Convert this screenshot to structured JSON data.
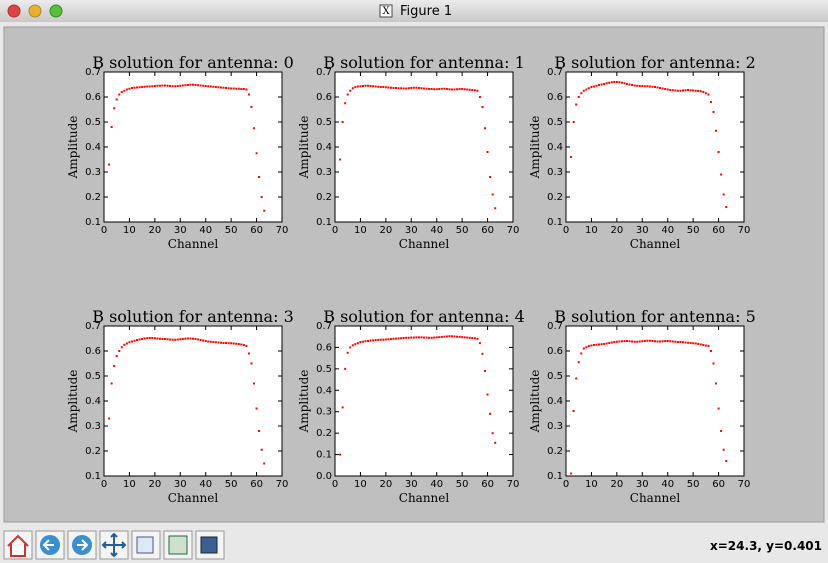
{
  "window": {
    "title": "Figure 1",
    "status": "x=24.3, y=0.401"
  },
  "chart_data": [
    {
      "type": "scatter",
      "title": "B solution for antenna: 0",
      "xlabel": "Channel",
      "ylabel": "Amplitude",
      "color": "#ff0000",
      "xlim": [
        0,
        70
      ],
      "ylim": [
        0.1,
        0.7
      ],
      "xticks": [
        0,
        10,
        20,
        30,
        40,
        50,
        60,
        70
      ],
      "yticks": [
        0.1,
        0.2,
        0.3,
        0.4,
        0.5,
        0.6,
        0.7
      ],
      "x": [
        2,
        3,
        4,
        5,
        6,
        7,
        8,
        9,
        10,
        11,
        12,
        13,
        14,
        15,
        16,
        17,
        18,
        19,
        20,
        21,
        22,
        23,
        24,
        25,
        26,
        27,
        28,
        29,
        30,
        31,
        32,
        33,
        34,
        35,
        36,
        37,
        38,
        39,
        40,
        41,
        42,
        43,
        44,
        45,
        46,
        47,
        48,
        49,
        50,
        51,
        52,
        53,
        54,
        55,
        56,
        57,
        58,
        59,
        60,
        61,
        62,
        63
      ],
      "values": [
        0.33,
        0.48,
        0.555,
        0.59,
        0.61,
        0.62,
        0.625,
        0.63,
        0.633,
        0.636,
        0.637,
        0.638,
        0.639,
        0.64,
        0.641,
        0.642,
        0.642,
        0.643,
        0.644,
        0.645,
        0.645,
        0.646,
        0.646,
        0.645,
        0.644,
        0.643,
        0.643,
        0.644,
        0.645,
        0.646,
        0.647,
        0.648,
        0.649,
        0.649,
        0.648,
        0.647,
        0.646,
        0.645,
        0.644,
        0.643,
        0.642,
        0.641,
        0.64,
        0.639,
        0.638,
        0.637,
        0.636,
        0.635,
        0.634,
        0.634,
        0.633,
        0.633,
        0.632,
        0.632,
        0.63,
        0.61,
        0.56,
        0.475,
        0.375,
        0.28,
        0.2,
        0.145
      ]
    },
    {
      "type": "scatter",
      "title": "B solution for antenna: 1",
      "xlabel": "Channel",
      "ylabel": "Amplitude",
      "color": "#ff0000",
      "xlim": [
        0,
        70
      ],
      "ylim": [
        0.1,
        0.7
      ],
      "xticks": [
        0,
        10,
        20,
        30,
        40,
        50,
        60,
        70
      ],
      "yticks": [
        0.1,
        0.2,
        0.3,
        0.4,
        0.5,
        0.6,
        0.7
      ],
      "x": [
        2,
        3,
        4,
        5,
        6,
        7,
        8,
        9,
        10,
        11,
        12,
        13,
        14,
        15,
        16,
        17,
        18,
        19,
        20,
        21,
        22,
        23,
        24,
        25,
        26,
        27,
        28,
        29,
        30,
        31,
        32,
        33,
        34,
        35,
        36,
        37,
        38,
        39,
        40,
        41,
        42,
        43,
        44,
        45,
        46,
        47,
        48,
        49,
        50,
        51,
        52,
        53,
        54,
        55,
        56,
        57,
        58,
        59,
        60,
        61,
        62,
        63
      ],
      "values": [
        0.35,
        0.5,
        0.575,
        0.61,
        0.625,
        0.635,
        0.64,
        0.642,
        0.643,
        0.644,
        0.645,
        0.645,
        0.644,
        0.643,
        0.642,
        0.641,
        0.64,
        0.64,
        0.639,
        0.638,
        0.637,
        0.636,
        0.636,
        0.635,
        0.635,
        0.634,
        0.634,
        0.635,
        0.636,
        0.637,
        0.637,
        0.636,
        0.635,
        0.634,
        0.633,
        0.632,
        0.632,
        0.631,
        0.631,
        0.632,
        0.633,
        0.633,
        0.632,
        0.631,
        0.63,
        0.63,
        0.631,
        0.632,
        0.632,
        0.631,
        0.63,
        0.629,
        0.628,
        0.627,
        0.625,
        0.6,
        0.56,
        0.475,
        0.38,
        0.28,
        0.21,
        0.155
      ]
    },
    {
      "type": "scatter",
      "title": "B solution for antenna: 2",
      "xlabel": "Channel",
      "ylabel": "Amplitude",
      "color": "#ff0000",
      "xlim": [
        0,
        70
      ],
      "ylim": [
        0.1,
        0.7
      ],
      "xticks": [
        0,
        10,
        20,
        30,
        40,
        50,
        60,
        70
      ],
      "yticks": [
        0.1,
        0.2,
        0.3,
        0.4,
        0.5,
        0.6,
        0.7
      ],
      "x": [
        2,
        3,
        4,
        5,
        6,
        7,
        8,
        9,
        10,
        11,
        12,
        13,
        14,
        15,
        16,
        17,
        18,
        19,
        20,
        21,
        22,
        23,
        24,
        25,
        26,
        27,
        28,
        29,
        30,
        31,
        32,
        33,
        34,
        35,
        36,
        37,
        38,
        39,
        40,
        41,
        42,
        43,
        44,
        45,
        46,
        47,
        48,
        49,
        50,
        51,
        52,
        53,
        54,
        55,
        56,
        57,
        58,
        59,
        60,
        61,
        62,
        63
      ],
      "values": [
        0.36,
        0.5,
        0.57,
        0.6,
        0.615,
        0.625,
        0.63,
        0.635,
        0.64,
        0.642,
        0.645,
        0.648,
        0.65,
        0.652,
        0.655,
        0.657,
        0.659,
        0.66,
        0.66,
        0.659,
        0.657,
        0.655,
        0.652,
        0.65,
        0.648,
        0.646,
        0.645,
        0.644,
        0.644,
        0.643,
        0.643,
        0.642,
        0.641,
        0.64,
        0.638,
        0.636,
        0.634,
        0.632,
        0.63,
        0.628,
        0.627,
        0.626,
        0.625,
        0.625,
        0.626,
        0.627,
        0.628,
        0.627,
        0.626,
        0.625,
        0.624,
        0.623,
        0.62,
        0.615,
        0.61,
        0.58,
        0.54,
        0.465,
        0.38,
        0.29,
        0.21,
        0.16
      ]
    },
    {
      "type": "scatter",
      "title": "B solution for antenna: 3",
      "xlabel": "Channel",
      "ylabel": "Amplitude",
      "color": "#ff0000",
      "xlim": [
        0,
        70
      ],
      "ylim": [
        0.1,
        0.7
      ],
      "xticks": [
        0,
        10,
        20,
        30,
        40,
        50,
        60,
        70
      ],
      "yticks": [
        0.1,
        0.2,
        0.3,
        0.4,
        0.5,
        0.6,
        0.7
      ],
      "x": [
        2,
        3,
        4,
        5,
        6,
        7,
        8,
        9,
        10,
        11,
        12,
        13,
        14,
        15,
        16,
        17,
        18,
        19,
        20,
        21,
        22,
        23,
        24,
        25,
        26,
        27,
        28,
        29,
        30,
        31,
        32,
        33,
        34,
        35,
        36,
        37,
        38,
        39,
        40,
        41,
        42,
        43,
        44,
        45,
        46,
        47,
        48,
        49,
        50,
        51,
        52,
        53,
        54,
        55,
        56,
        57,
        58,
        59,
        60,
        61,
        62,
        63
      ],
      "values": [
        0.33,
        0.47,
        0.54,
        0.58,
        0.6,
        0.615,
        0.625,
        0.63,
        0.635,
        0.638,
        0.641,
        0.644,
        0.646,
        0.648,
        0.65,
        0.651,
        0.652,
        0.652,
        0.651,
        0.65,
        0.649,
        0.648,
        0.648,
        0.647,
        0.646,
        0.645,
        0.645,
        0.646,
        0.647,
        0.648,
        0.649,
        0.65,
        0.65,
        0.649,
        0.648,
        0.646,
        0.644,
        0.642,
        0.64,
        0.638,
        0.637,
        0.636,
        0.635,
        0.634,
        0.633,
        0.632,
        0.632,
        0.631,
        0.631,
        0.63,
        0.629,
        0.628,
        0.626,
        0.624,
        0.62,
        0.59,
        0.55,
        0.47,
        0.37,
        0.28,
        0.205,
        0.15
      ]
    },
    {
      "type": "scatter",
      "title": "B solution for antenna: 4",
      "xlabel": "Channel",
      "ylabel": "Amplitude",
      "color": "#ff0000",
      "xlim": [
        0,
        70
      ],
      "ylim": [
        0,
        0.7
      ],
      "xticks": [
        0,
        10,
        20,
        30,
        40,
        50,
        60,
        70
      ],
      "yticks": [
        {
          "value": 0,
          "label": "0.0"
        },
        0.1,
        0.2,
        0.3,
        0.4,
        0.5,
        0.6,
        0.7
      ],
      "x": [
        2,
        3,
        4,
        5,
        6,
        7,
        8,
        9,
        10,
        11,
        12,
        13,
        14,
        15,
        16,
        17,
        18,
        19,
        20,
        21,
        22,
        23,
        24,
        25,
        26,
        27,
        28,
        29,
        30,
        31,
        32,
        33,
        34,
        35,
        36,
        37,
        38,
        39,
        40,
        41,
        42,
        43,
        44,
        45,
        46,
        47,
        48,
        49,
        50,
        51,
        52,
        53,
        54,
        55,
        56,
        57,
        58,
        59,
        60,
        61,
        62,
        63
      ],
      "values": [
        0.1,
        0.32,
        0.5,
        0.575,
        0.6,
        0.61,
        0.615,
        0.62,
        0.625,
        0.627,
        0.629,
        0.63,
        0.632,
        0.633,
        0.634,
        0.635,
        0.636,
        0.636,
        0.637,
        0.638,
        0.639,
        0.64,
        0.641,
        0.642,
        0.643,
        0.644,
        0.645,
        0.645,
        0.646,
        0.646,
        0.647,
        0.647,
        0.647,
        0.646,
        0.646,
        0.645,
        0.645,
        0.646,
        0.647,
        0.648,
        0.649,
        0.65,
        0.651,
        0.652,
        0.652,
        0.651,
        0.65,
        0.649,
        0.648,
        0.647,
        0.646,
        0.645,
        0.644,
        0.643,
        0.64,
        0.62,
        0.57,
        0.49,
        0.38,
        0.29,
        0.2,
        0.155
      ]
    },
    {
      "type": "scatter",
      "title": "B solution for antenna: 5",
      "xlabel": "Channel",
      "ylabel": "Amplitude",
      "color": "#ff0000",
      "xlim": [
        0,
        70
      ],
      "ylim": [
        0.1,
        0.7
      ],
      "xticks": [
        0,
        10,
        20,
        30,
        40,
        50,
        60,
        70
      ],
      "yticks": [
        0.1,
        0.2,
        0.3,
        0.4,
        0.5,
        0.6,
        0.7
      ],
      "x": [
        2,
        3,
        4,
        5,
        6,
        7,
        8,
        9,
        10,
        11,
        12,
        13,
        14,
        15,
        16,
        17,
        18,
        19,
        20,
        21,
        22,
        23,
        24,
        25,
        26,
        27,
        28,
        29,
        30,
        31,
        32,
        33,
        34,
        35,
        36,
        37,
        38,
        39,
        40,
        41,
        42,
        43,
        44,
        45,
        46,
        47,
        48,
        49,
        50,
        51,
        52,
        53,
        54,
        55,
        56,
        57,
        58,
        59,
        60,
        61,
        62,
        63
      ],
      "values": [
        0.11,
        0.36,
        0.49,
        0.555,
        0.59,
        0.61,
        0.615,
        0.62,
        0.622,
        0.624,
        0.625,
        0.626,
        0.627,
        0.628,
        0.63,
        0.632,
        0.634,
        0.636,
        0.637,
        0.638,
        0.639,
        0.64,
        0.64,
        0.639,
        0.638,
        0.637,
        0.637,
        0.638,
        0.639,
        0.64,
        0.641,
        0.641,
        0.64,
        0.639,
        0.638,
        0.638,
        0.639,
        0.64,
        0.64,
        0.639,
        0.638,
        0.637,
        0.636,
        0.636,
        0.635,
        0.634,
        0.633,
        0.632,
        0.631,
        0.63,
        0.628,
        0.626,
        0.624,
        0.622,
        0.62,
        0.6,
        0.55,
        0.47,
        0.37,
        0.28,
        0.205,
        0.16
      ]
    }
  ]
}
